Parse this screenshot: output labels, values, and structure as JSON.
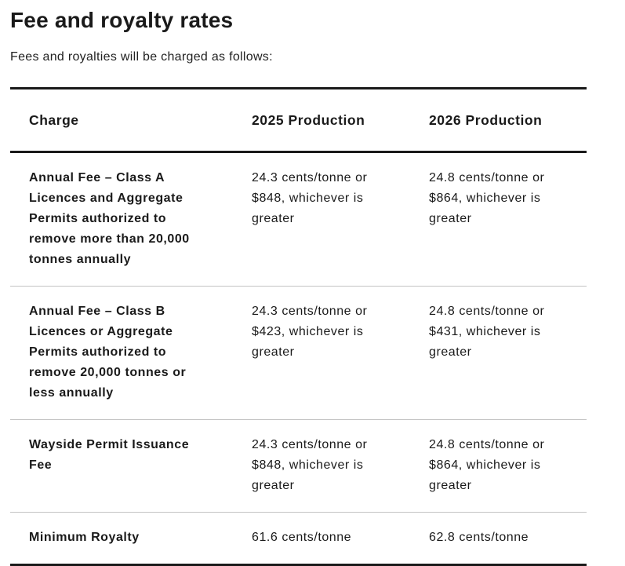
{
  "title": "Fee and royalty rates",
  "intro": "Fees and royalties will be charged as follows:",
  "table": {
    "headers": [
      "Charge",
      "2025 Production",
      "2026 Production"
    ],
    "rows": [
      [
        "Annual Fee – Class A Licences and Aggregate Permits authorized to remove more than 20,000 tonnes annually",
        "24.3 cents/tonne or $848, whichever is greater",
        "24.8 cents/tonne or $864, whichever is greater"
      ],
      [
        "Annual Fee – Class B Licences or Aggregate Permits authorized to remove 20,000 tonnes or less annually",
        "24.3 cents/tonne or $423, whichever is greater",
        "24.8 cents/tonne or $431, whichever is greater"
      ],
      [
        "Wayside Permit Issuance Fee",
        "24.3 cents/tonne or $848, whichever is greater",
        "24.8 cents/tonne or $864, whichever is greater"
      ],
      [
        "Minimum Royalty",
        "61.6 cents/tonne",
        "62.8 cents/tonne"
      ]
    ]
  }
}
